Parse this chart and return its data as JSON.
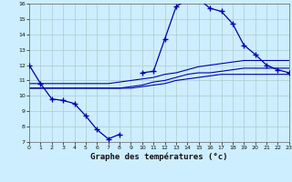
{
  "title": "Graphe des températures (°c)",
  "background_color": "#cceeff",
  "grid_color": "#aacccc",
  "line_color": "#0000aa",
  "hours": [
    0,
    1,
    2,
    3,
    4,
    5,
    6,
    7,
    8,
    9,
    10,
    11,
    12,
    13,
    14,
    15,
    16,
    17,
    18,
    19,
    20,
    21,
    22,
    23
  ],
  "temp_actual": [
    12.0,
    10.8,
    9.8,
    9.7,
    9.5,
    8.7,
    7.8,
    7.2,
    7.5,
    null,
    11.5,
    11.6,
    13.7,
    15.8,
    16.3,
    16.3,
    15.7,
    15.5,
    14.7,
    13.3,
    12.7,
    12.0,
    11.7,
    11.5
  ],
  "line1": [
    10.5,
    10.5,
    10.5,
    10.5,
    10.5,
    10.5,
    10.5,
    10.5,
    10.5,
    10.5,
    10.6,
    10.7,
    10.8,
    11.0,
    11.1,
    11.2,
    11.3,
    11.4,
    11.4,
    11.4,
    11.4,
    11.4,
    11.4,
    11.4
  ],
  "line2": [
    10.8,
    10.8,
    10.8,
    10.8,
    10.8,
    10.8,
    10.8,
    10.8,
    10.9,
    11.0,
    11.1,
    11.2,
    11.4,
    11.5,
    11.7,
    11.9,
    12.0,
    12.1,
    12.2,
    12.3,
    12.3,
    12.3,
    12.3,
    12.3
  ],
  "line3": [
    10.5,
    10.5,
    10.5,
    10.5,
    10.5,
    10.5,
    10.5,
    10.5,
    10.5,
    10.6,
    10.7,
    10.9,
    11.0,
    11.2,
    11.4,
    11.5,
    11.5,
    11.6,
    11.7,
    11.8,
    11.8,
    11.8,
    11.8,
    11.8
  ],
  "ylim": [
    7,
    16
  ],
  "xlim": [
    0,
    23
  ],
  "yticks": [
    7,
    8,
    9,
    10,
    11,
    12,
    13,
    14,
    15,
    16
  ],
  "xticks": [
    0,
    1,
    2,
    3,
    4,
    5,
    6,
    7,
    8,
    9,
    10,
    11,
    12,
    13,
    14,
    15,
    16,
    17,
    18,
    19,
    20,
    21,
    22,
    23
  ]
}
